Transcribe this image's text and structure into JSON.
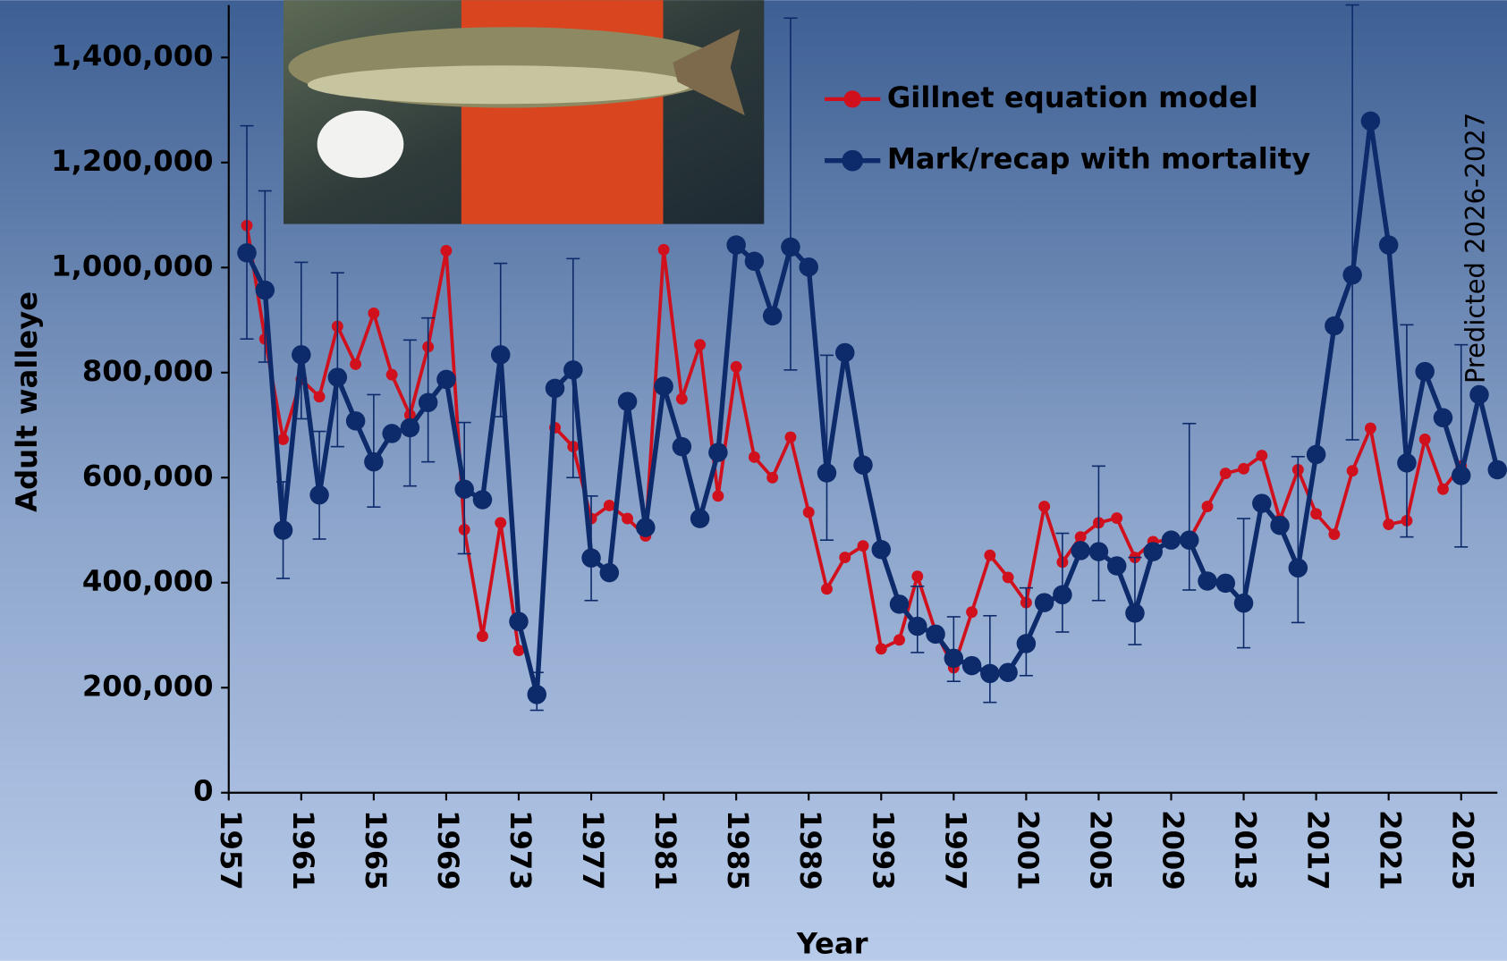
{
  "chart_data": {
    "type": "line",
    "x_label": "Year",
    "y_label": "Adult walleye",
    "annotation": "Predicted 2026-2027",
    "xlim": [
      1957,
      2027
    ],
    "xticks": [
      1957,
      1961,
      1965,
      1969,
      1973,
      1977,
      1981,
      1985,
      1989,
      1993,
      1997,
      2001,
      2005,
      2009,
      2013,
      2017,
      2021,
      2025
    ],
    "ylim": [
      0,
      1500000
    ],
    "yticks": [
      {
        "value": 0,
        "label": "0"
      },
      {
        "value": 200000,
        "label": "200,000"
      },
      {
        "value": 400000,
        "label": "400,000"
      },
      {
        "value": 600000,
        "label": "600,000"
      },
      {
        "value": 800000,
        "label": "800,000"
      },
      {
        "value": 1000000,
        "label": "1,000,000"
      },
      {
        "value": 1200000,
        "label": "1,200,000"
      },
      {
        "value": 1400000,
        "label": "1,400,000"
      }
    ],
    "grid": false,
    "legend": "upper right",
    "x": [
      1958,
      1959,
      1960,
      1961,
      1962,
      1963,
      1964,
      1965,
      1966,
      1967,
      1968,
      1969,
      1970,
      1971,
      1972,
      1973,
      1974,
      1975,
      1976,
      1977,
      1978,
      1979,
      1980,
      1981,
      1982,
      1983,
      1984,
      1985,
      1986,
      1987,
      1988,
      1989,
      1990,
      1991,
      1992,
      1993,
      1994,
      1995,
      1996,
      1997,
      1998,
      1999,
      2000,
      2001,
      2002,
      2003,
      2004,
      2005,
      2006,
      2007,
      2008,
      2009,
      2010,
      2011,
      2012,
      2013,
      2014,
      2015,
      2016,
      2017,
      2018,
      2019,
      2020,
      2021,
      2022,
      2023,
      2024,
      2025,
      2026,
      2027
    ],
    "series": [
      {
        "name": "Gillnet equation model",
        "color": "#d0101c",
        "values": [
          1080000,
          864000,
          673000,
          787000,
          754000,
          888000,
          816000,
          913000,
          796000,
          719000,
          849000,
          1032000,
          501000,
          298000,
          514000,
          271000,
          null,
          695000,
          659000,
          522000,
          547000,
          522000,
          489000,
          1034000,
          750000,
          853000,
          565000,
          811000,
          639000,
          600000,
          677000,
          534000,
          388000,
          448000,
          470000,
          274000,
          291000,
          412000,
          307000,
          238000,
          344000,
          452000,
          410000,
          362000,
          545000,
          439000,
          487000,
          514000,
          523000,
          448000,
          478000,
          481000,
          481000,
          545000,
          608000,
          617000,
          642000,
          520000,
          615000,
          531000,
          492000,
          613000,
          694000,
          511000,
          518000,
          673000,
          578000,
          622000,
          null,
          null
        ]
      },
      {
        "name": "Mark/recap with mortality",
        "color": "#0d2a6b",
        "values": [
          1028000,
          957000,
          500000,
          834000,
          567000,
          791000,
          708000,
          630000,
          684000,
          695000,
          743000,
          787000,
          578000,
          558000,
          834000,
          326000,
          187000,
          770000,
          805000,
          447000,
          419000,
          745000,
          505000,
          774000,
          659000,
          522000,
          648000,
          1043000,
          1012000,
          908000,
          1039000,
          1001000,
          609000,
          838000,
          624000,
          463000,
          359000,
          317000,
          302000,
          256000,
          242000,
          227000,
          229000,
          284000,
          362000,
          377000,
          461000,
          459000,
          432000,
          342000,
          459000,
          481000,
          481000,
          403000,
          399000,
          361000,
          551000,
          509000,
          428000,
          644000,
          889000,
          986000,
          1279000,
          1043000,
          628000,
          802000,
          714000,
          604000,
          758000,
          615000
        ],
        "lower": [
          864000,
          820000,
          408000,
          712000,
          483000,
          659000,
          null,
          544000,
          null,
          584000,
          630000,
          null,
          455000,
          null,
          716000,
          null,
          157000,
          null,
          600000,
          366000,
          null,
          null,
          null,
          null,
          null,
          null,
          null,
          null,
          null,
          null,
          805000,
          null,
          481000,
          null,
          null,
          null,
          null,
          267000,
          null,
          212000,
          null,
          172000,
          null,
          223000,
          null,
          306000,
          null,
          366000,
          null,
          282000,
          null,
          null,
          386000,
          null,
          null,
          276000,
          null,
          null,
          324000,
          null,
          null,
          672000,
          null,
          null,
          487000,
          null,
          null,
          468000,
          null,
          null
        ],
        "upper": [
          1270000,
          1146000,
          592000,
          1010000,
          688000,
          990000,
          null,
          758000,
          null,
          862000,
          904000,
          null,
          705000,
          null,
          1008000,
          null,
          229000,
          null,
          1017000,
          565000,
          null,
          null,
          null,
          null,
          null,
          null,
          null,
          null,
          null,
          null,
          1475000,
          null,
          833000,
          null,
          null,
          null,
          null,
          393000,
          null,
          335000,
          null,
          337000,
          null,
          390000,
          null,
          494000,
          null,
          622000,
          null,
          448000,
          null,
          null,
          703000,
          null,
          null,
          522000,
          null,
          null,
          640000,
          null,
          null,
          1500000,
          null,
          null,
          891000,
          null,
          null,
          853000,
          null,
          null
        ]
      }
    ]
  }
}
